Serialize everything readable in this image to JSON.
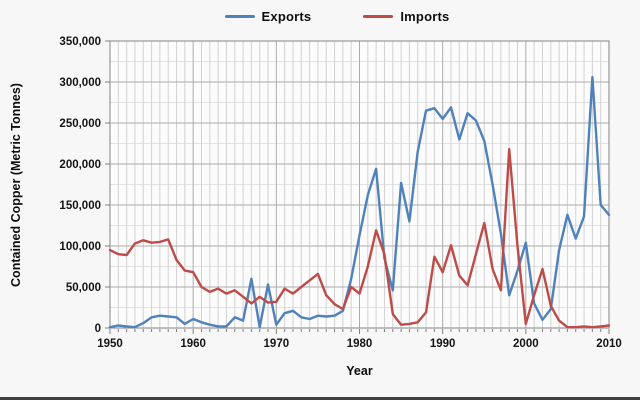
{
  "window": {
    "background_color": "#F7F7F7",
    "bottom_bar_color": "#3F3F3F"
  },
  "legend": {
    "items": [
      {
        "label": "Exports",
        "color": "#4F81BD"
      },
      {
        "label": "Imports",
        "color": "#BE4B48"
      }
    ]
  },
  "axes": {
    "y": {
      "title": "Contained Copper (Metric Tonnes)",
      "min": 0,
      "max": 350000,
      "major_step": 50000,
      "minor_step": 25000,
      "tick_labels": [
        "0",
        "50,000",
        "100,000",
        "150,000",
        "200,000",
        "250,000",
        "300,000",
        "350,000"
      ]
    },
    "x": {
      "title": "Year",
      "min": 1950,
      "max": 2010,
      "major_step": 10,
      "minor_step": 1,
      "tick_labels": [
        "1950",
        "1960",
        "1970",
        "1980",
        "1990",
        "2000",
        "2010"
      ]
    }
  },
  "chart_data": {
    "type": "line",
    "title": "",
    "xlabel": "Year",
    "ylabel": "Contained Copper (Metric Tonnes)",
    "ylim": [
      0,
      350000
    ],
    "xlim": [
      1950,
      2010
    ],
    "grid": true,
    "legend_position": "top",
    "x": [
      1950,
      1951,
      1952,
      1953,
      1954,
      1955,
      1956,
      1957,
      1958,
      1959,
      1960,
      1961,
      1962,
      1963,
      1964,
      1965,
      1966,
      1967,
      1968,
      1969,
      1970,
      1971,
      1972,
      1973,
      1974,
      1975,
      1976,
      1977,
      1978,
      1979,
      1980,
      1981,
      1982,
      1983,
      1984,
      1985,
      1986,
      1987,
      1988,
      1989,
      1990,
      1991,
      1992,
      1993,
      1994,
      1995,
      1996,
      1997,
      1998,
      1999,
      2000,
      2001,
      2002,
      2003,
      2004,
      2005,
      2006,
      2007,
      2008,
      2009,
      2010
    ],
    "series": [
      {
        "name": "Exports",
        "color": "#4F81BD",
        "values": [
          1000,
          3000,
          2000,
          1000,
          6000,
          13000,
          15000,
          14000,
          13000,
          5000,
          11000,
          7000,
          4000,
          2000,
          2000,
          13000,
          9000,
          60000,
          1000,
          53000,
          4000,
          18000,
          21000,
          13000,
          11000,
          15000,
          14000,
          15000,
          21000,
          60000,
          113000,
          162000,
          194000,
          85000,
          46000,
          177000,
          130000,
          215000,
          265000,
          268000,
          255000,
          269000,
          230000,
          262000,
          253000,
          228000,
          175000,
          115000,
          40000,
          70000,
          104000,
          30000,
          10000,
          23000,
          95000,
          138000,
          109000,
          136000,
          306000,
          150000,
          138000
        ]
      },
      {
        "name": "Imports",
        "color": "#BE4B48",
        "values": [
          95000,
          90000,
          89000,
          103000,
          107000,
          104000,
          105000,
          108000,
          83000,
          70000,
          68000,
          50000,
          44000,
          48000,
          42000,
          46000,
          38000,
          30000,
          38000,
          31000,
          32000,
          48000,
          42000,
          50000,
          58000,
          66000,
          40000,
          29000,
          23000,
          50000,
          42000,
          75000,
          119000,
          90000,
          17000,
          4000,
          5000,
          7000,
          19000,
          87000,
          68000,
          101000,
          64000,
          52000,
          90000,
          128000,
          72000,
          46000,
          218000,
          100000,
          5000,
          40000,
          72000,
          27000,
          9000,
          1000,
          1000,
          2000,
          1000,
          2000,
          3000
        ]
      }
    ]
  }
}
